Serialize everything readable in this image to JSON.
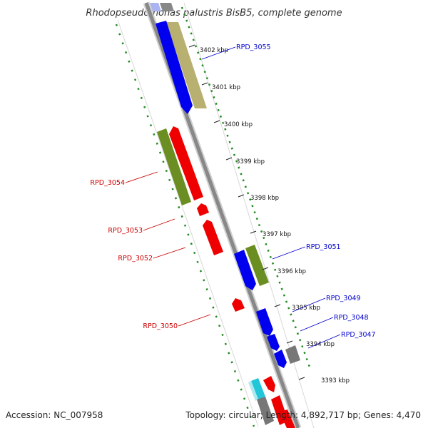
{
  "title": "Rhodopseudomonas palustris BisB5, complete genome",
  "footer": {
    "accession": "Accession: NC_007958",
    "topology": "Topology: circular; Length: 4,892,717 bp; Genes: 4,470"
  },
  "colors": {
    "forward_cds": "#0000ee",
    "reverse_cds": "#ee0000",
    "forward_cog_yellow": "#b8b070",
    "reverse_cog_green": "#6b8e23",
    "gray_feature": "#777777",
    "cyan_feature": "#22c6d9",
    "dotted_ring": "#228b22",
    "backbone": "#888888",
    "forward_label": "#0000cc",
    "reverse_label": "#cc0000"
  },
  "ticks": [
    "3402 kbp",
    "3401 kbp",
    "3400 kbp",
    "3399 kbp",
    "3398 kbp",
    "3397 kbp",
    "3396 kbp",
    "3395 kbp",
    "3394 kbp",
    "3393 kbp"
  ],
  "gene_labels": {
    "forward": [
      "RPD_3055",
      "RPD_3051",
      "RPD_3049",
      "RPD_3048",
      "RPD_3047"
    ],
    "reverse": [
      "RPD_3054",
      "RPD_3053",
      "RPD_3052",
      "RPD_3050"
    ]
  }
}
